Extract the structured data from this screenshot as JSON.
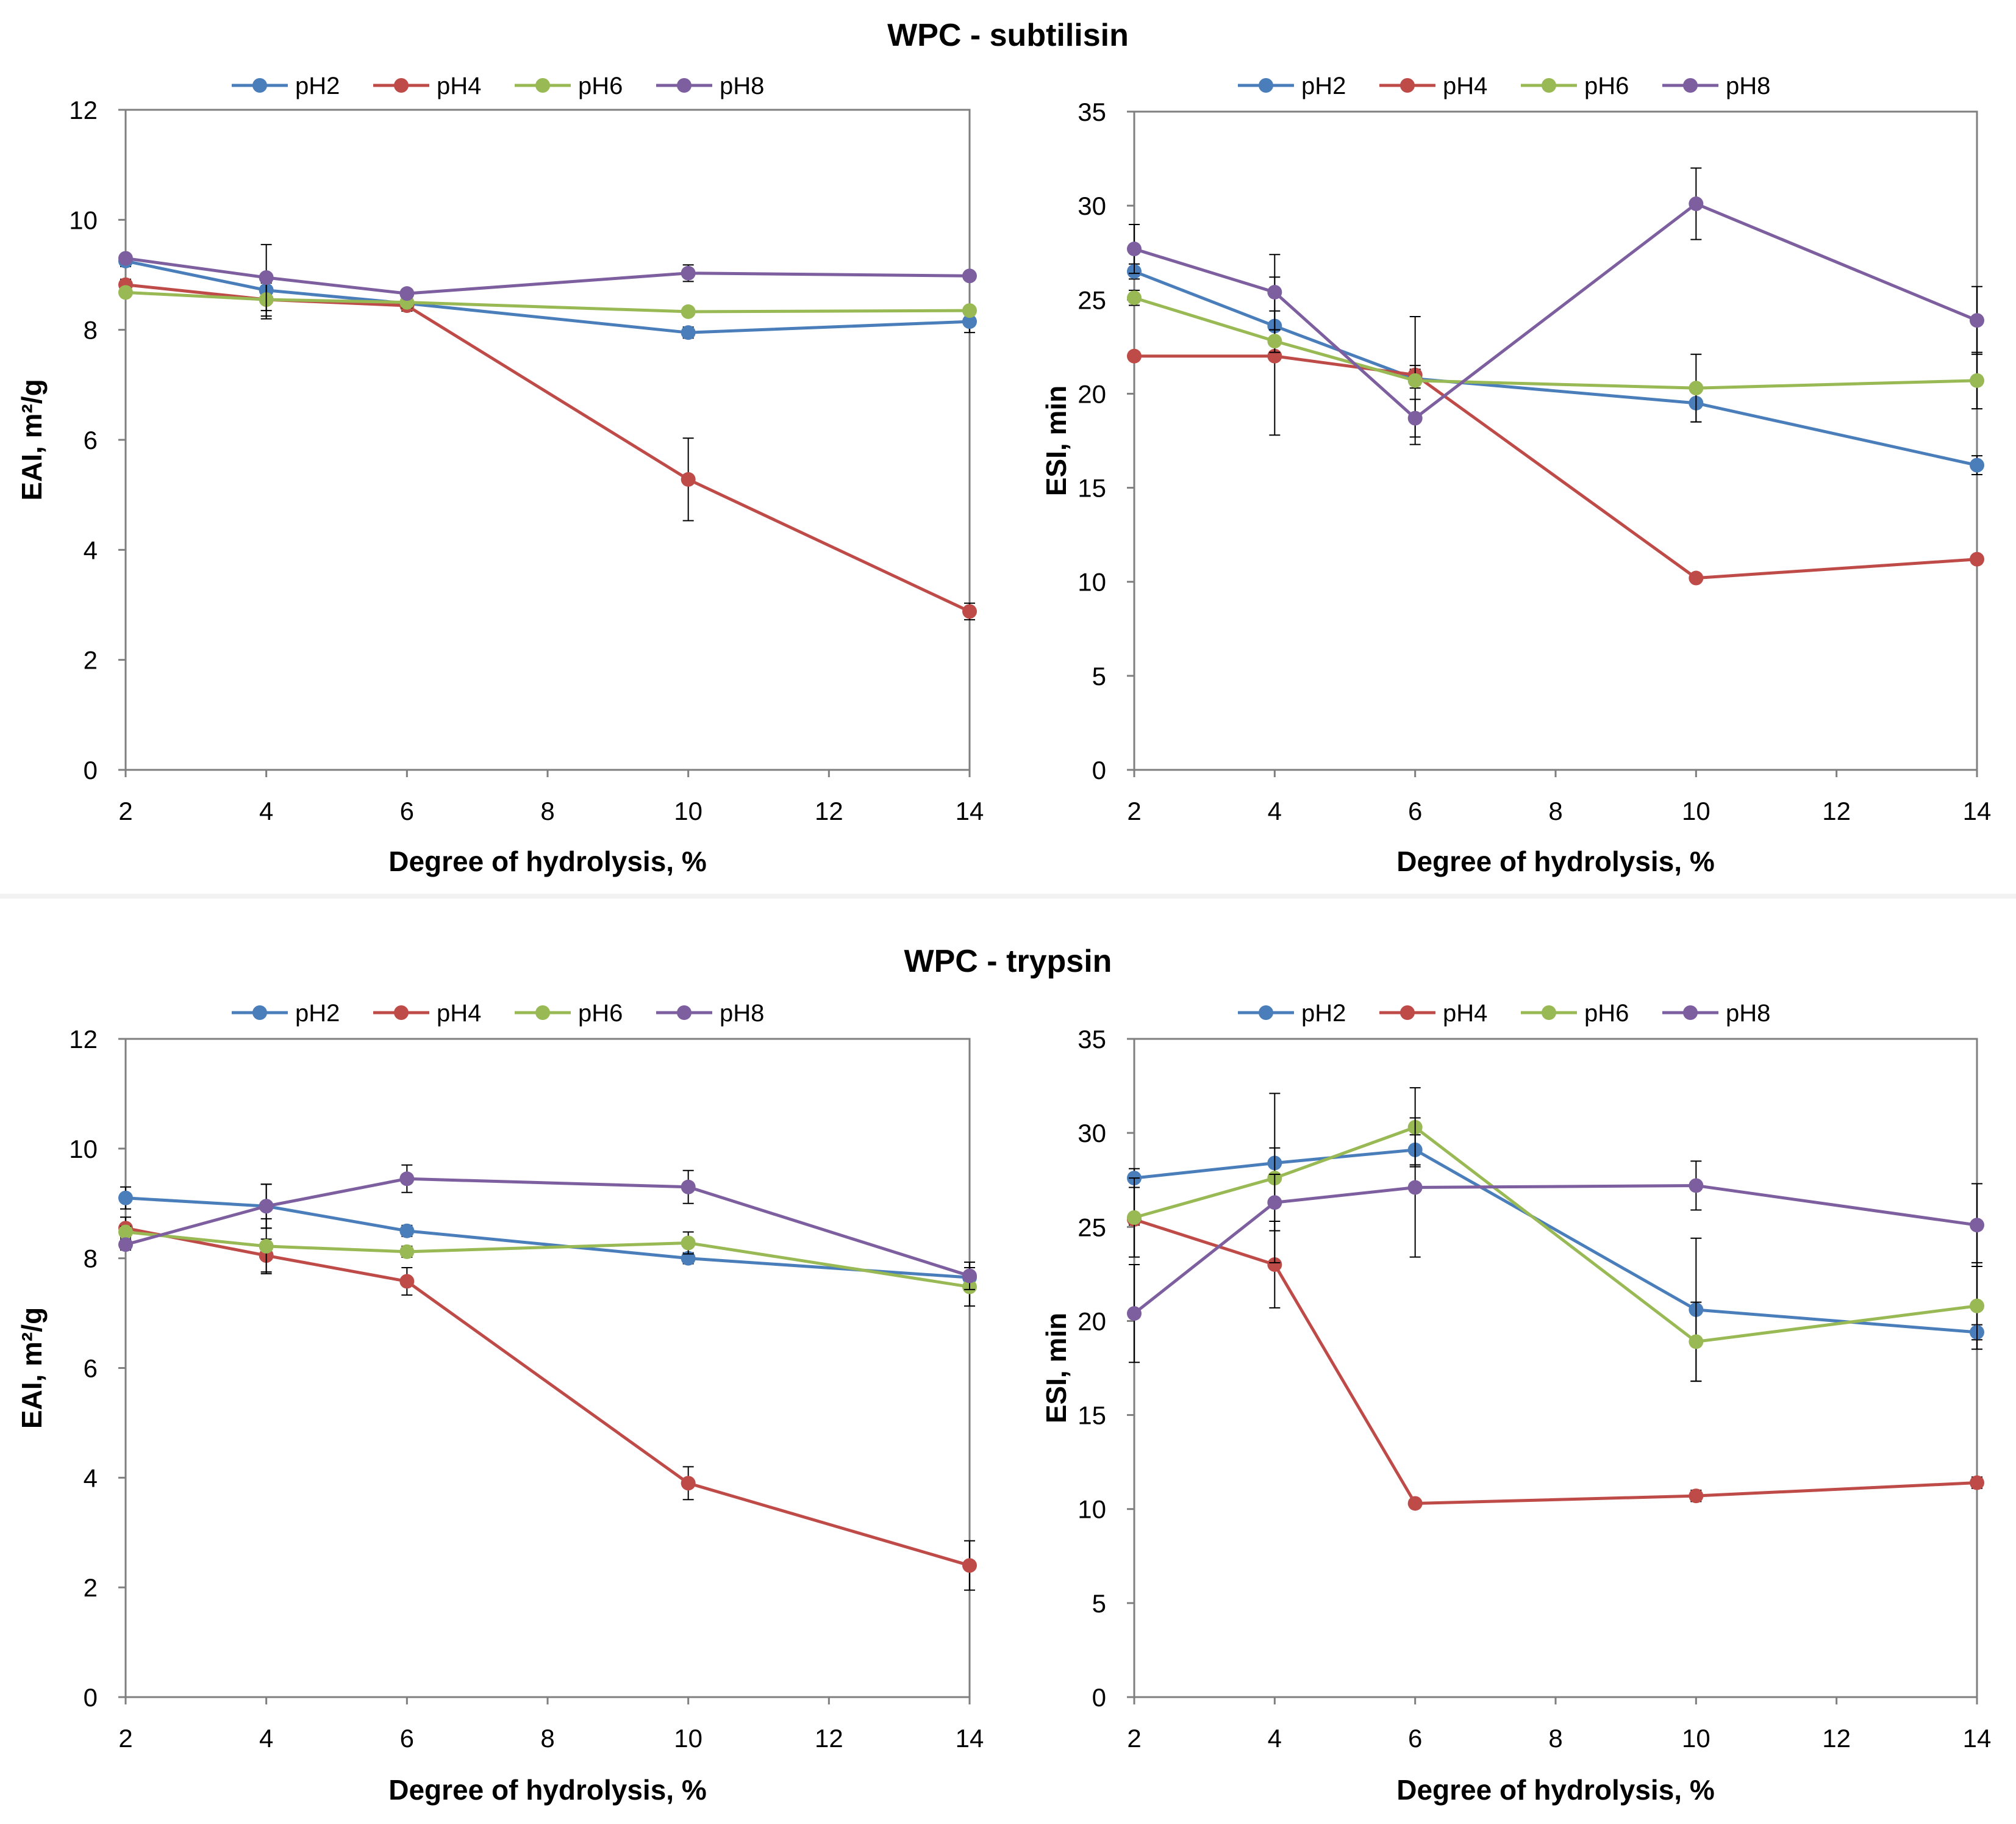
{
  "sections": [
    {
      "title": "WPC - subtilisin"
    },
    {
      "title": "WPC - trypsin"
    }
  ],
  "colors": {
    "pH2": "#4a7ebb",
    "pH4": "#be4b48",
    "pH6": "#98b954",
    "pH8": "#7d5fa0"
  },
  "chart_data": [
    {
      "type": "line",
      "section": "WPC - subtilisin",
      "xlabel": "Degree of hydrolysis, %",
      "ylabel": "EAI, m²/g",
      "xlim": [
        2,
        14
      ],
      "xticks": [
        2,
        4,
        6,
        8,
        10,
        12,
        14
      ],
      "ylim": [
        0,
        12
      ],
      "yticks": [
        0,
        2,
        4,
        6,
        8,
        10,
        12
      ],
      "legend": [
        "pH2",
        "pH4",
        "pH6",
        "pH8"
      ],
      "series": [
        {
          "name": "pH2",
          "x": [
            2,
            4,
            6,
            10,
            14
          ],
          "y": [
            9.25,
            8.72,
            8.48,
            7.95,
            8.15
          ],
          "err": [
            0.1,
            0.2,
            0.1,
            0.1,
            0.2
          ]
        },
        {
          "name": "pH4",
          "x": [
            2,
            4,
            6,
            10,
            14
          ],
          "y": [
            8.82,
            8.55,
            8.44,
            5.28,
            2.88
          ],
          "err": [
            0.1,
            0.35,
            0.1,
            0.75,
            0.15
          ]
        },
        {
          "name": "pH6",
          "x": [
            2,
            4,
            6,
            10,
            14
          ],
          "y": [
            8.68,
            8.55,
            8.5,
            8.33,
            8.35
          ],
          "err": [
            0.05,
            0.3,
            0.1,
            0.05,
            0.05
          ]
        },
        {
          "name": "pH8",
          "x": [
            2,
            4,
            6,
            10,
            14
          ],
          "y": [
            9.3,
            8.95,
            8.66,
            9.03,
            8.98
          ],
          "err": [
            0.05,
            0.6,
            0.05,
            0.15,
            0.05
          ]
        }
      ]
    },
    {
      "type": "line",
      "section": "WPC - subtilisin",
      "xlabel": "Degree of hydrolysis, %",
      "ylabel": "ESI, min",
      "xlim": [
        2,
        14
      ],
      "xticks": [
        2,
        4,
        6,
        8,
        10,
        12,
        14
      ],
      "ylim": [
        0,
        35
      ],
      "yticks": [
        0,
        5,
        10,
        15,
        20,
        25,
        30,
        35
      ],
      "legend": [
        "pH2",
        "pH4",
        "pH6",
        "pH8"
      ],
      "series": [
        {
          "name": "pH2",
          "x": [
            2,
            4,
            6,
            10,
            14
          ],
          "y": [
            26.5,
            23.6,
            20.8,
            19.5,
            16.2
          ],
          "err": [
            0.4,
            0.8,
            0.5,
            1.0,
            0.5
          ]
        },
        {
          "name": "pH4",
          "x": [
            2,
            4,
            6,
            10,
            14
          ],
          "y": [
            22.0,
            22.0,
            21.0,
            10.2,
            11.2
          ],
          "err": [
            0.2,
            4.2,
            0.5,
            0.2,
            0.2
          ]
        },
        {
          "name": "pH6",
          "x": [
            2,
            4,
            6,
            10,
            14
          ],
          "y": [
            25.1,
            22.8,
            20.7,
            20.3,
            20.7
          ],
          "err": [
            0.4,
            0.6,
            3.4,
            1.8,
            1.5
          ]
        },
        {
          "name": "pH8",
          "x": [
            2,
            4,
            6,
            10,
            14
          ],
          "y": [
            27.7,
            25.4,
            18.7,
            30.1,
            23.9
          ],
          "err": [
            1.3,
            2.0,
            1.0,
            1.9,
            1.8
          ]
        }
      ]
    },
    {
      "type": "line",
      "section": "WPC - trypsin",
      "xlabel": "Degree of hydrolysis, %",
      "ylabel": "EAI, m²/g",
      "xlim": [
        2,
        14
      ],
      "xticks": [
        2,
        4,
        6,
        8,
        10,
        12,
        14
      ],
      "ylim": [
        0,
        12
      ],
      "yticks": [
        0,
        2,
        4,
        6,
        8,
        10,
        12
      ],
      "legend": [
        "pH2",
        "pH4",
        "pH6",
        "pH8"
      ],
      "series": [
        {
          "name": "pH2",
          "x": [
            2,
            4,
            6,
            10,
            14
          ],
          "y": [
            9.1,
            8.95,
            8.5,
            8.0,
            7.65
          ],
          "err": [
            0.2,
            0.4,
            0.1,
            0.1,
            0.1
          ]
        },
        {
          "name": "pH4",
          "x": [
            2,
            4,
            6,
            10,
            14
          ],
          "y": [
            8.55,
            8.05,
            7.58,
            3.9,
            2.4
          ],
          "err": [
            0.2,
            0.3,
            0.25,
            0.3,
            0.45
          ]
        },
        {
          "name": "pH6",
          "x": [
            2,
            4,
            6,
            10,
            14
          ],
          "y": [
            8.48,
            8.22,
            8.12,
            8.28,
            7.48
          ],
          "err": [
            0.1,
            0.5,
            0.1,
            0.2,
            0.35
          ]
        },
        {
          "name": "pH8",
          "x": [
            2,
            4,
            6,
            10,
            14
          ],
          "y": [
            8.25,
            8.95,
            9.45,
            9.3,
            7.68
          ],
          "err": [
            0.1,
            0.4,
            0.25,
            0.3,
            0.25
          ]
        }
      ]
    },
    {
      "type": "line",
      "section": "WPC - trypsin",
      "xlabel": "Degree of hydrolysis, %",
      "ylabel": "ESI, min",
      "xlim": [
        2,
        14
      ],
      "xticks": [
        2,
        4,
        6,
        8,
        10,
        12,
        14
      ],
      "ylim": [
        0,
        35
      ],
      "yticks": [
        0,
        5,
        10,
        15,
        20,
        25,
        30,
        35
      ],
      "legend": [
        "pH2",
        "pH4",
        "pH6",
        "pH8"
      ],
      "series": [
        {
          "name": "pH2",
          "x": [
            2,
            4,
            6,
            10,
            14
          ],
          "y": [
            27.6,
            28.4,
            29.1,
            20.6,
            19.4
          ],
          "err": [
            0.5,
            0.8,
            0.8,
            3.8,
            0.4
          ]
        },
        {
          "name": "pH4",
          "x": [
            2,
            4,
            6,
            10,
            14
          ],
          "y": [
            25.4,
            23.0,
            10.3,
            10.7,
            11.4
          ],
          "err": [
            0.3,
            2.3,
            0.2,
            0.3,
            0.3
          ]
        },
        {
          "name": "pH6",
          "x": [
            2,
            4,
            6,
            10,
            14
          ],
          "y": [
            25.5,
            27.6,
            30.3,
            18.9,
            20.8
          ],
          "err": [
            2.1,
            4.5,
            2.1,
            2.1,
            2.3
          ]
        },
        {
          "name": "pH8",
          "x": [
            2,
            4,
            6,
            10,
            14
          ],
          "y": [
            20.4,
            26.3,
            27.1,
            27.2,
            25.1
          ],
          "err": [
            2.6,
            1.5,
            3.7,
            1.3,
            2.2
          ]
        }
      ]
    }
  ]
}
